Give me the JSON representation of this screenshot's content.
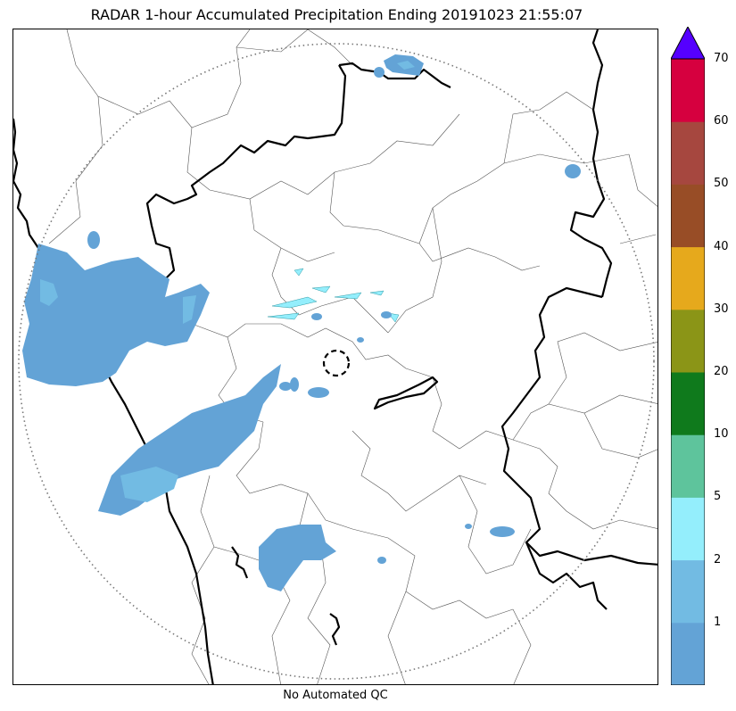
{
  "title": "RADAR 1-hour Accumulated Precipitation Ending 20191023 21:55:07",
  "footer": "No Automated QC",
  "colorbar": {
    "ticks": [
      "1",
      "2",
      "5",
      "10",
      "20",
      "30",
      "40",
      "50",
      "60",
      "70"
    ],
    "colors": [
      "#63a3d6",
      "#72bbe3",
      "#94eefc",
      "#5ec49c",
      "#0f7a1c",
      "#8b9517",
      "#e6a91c",
      "#984d26",
      "#a6473f",
      "#d6003f"
    ],
    "extend_color": "#5500ff"
  },
  "map": {
    "radar_range_ring": "dotted",
    "radar_site_marker": "dashed-circle",
    "precip_color_light": "#63a3d6",
    "precip_color_medium": "#72bbe3",
    "precip_color_heavy": "#94eefc"
  }
}
